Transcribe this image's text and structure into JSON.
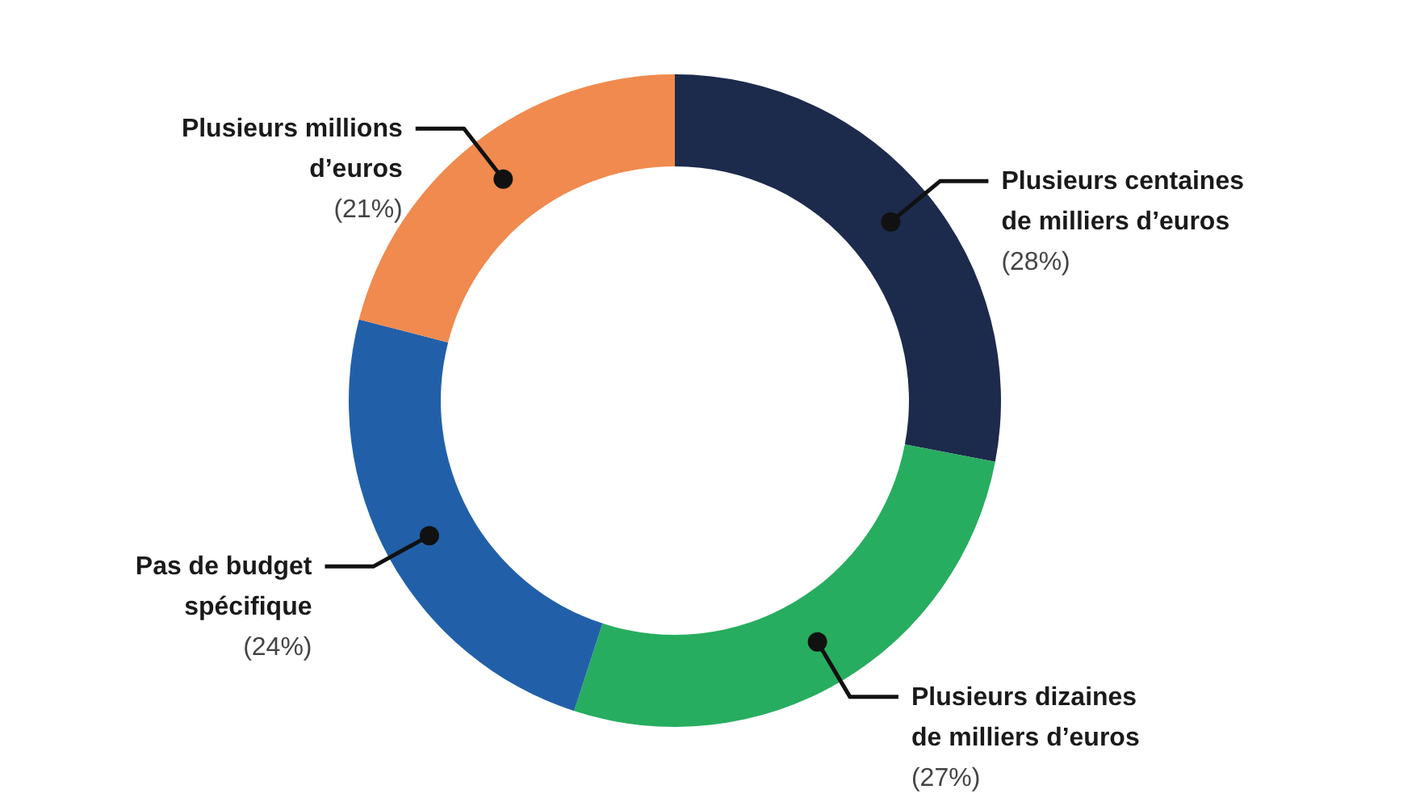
{
  "chart_data": {
    "type": "donut",
    "categories": [
      "Plusieurs centaines de milliers d’euros",
      "Plusieurs dizaines de milliers d’euros",
      "Pas de budget spécifique",
      "Plusieurs millions d’euros"
    ],
    "values": [
      28,
      27,
      24,
      21
    ],
    "colors": [
      "#1c2a4c",
      "#27ad5f",
      "#2160a8",
      "#f08a4e"
    ],
    "value_labels": [
      "(28%)",
      "(27%)",
      "(24%)",
      "(21%)"
    ]
  }
}
